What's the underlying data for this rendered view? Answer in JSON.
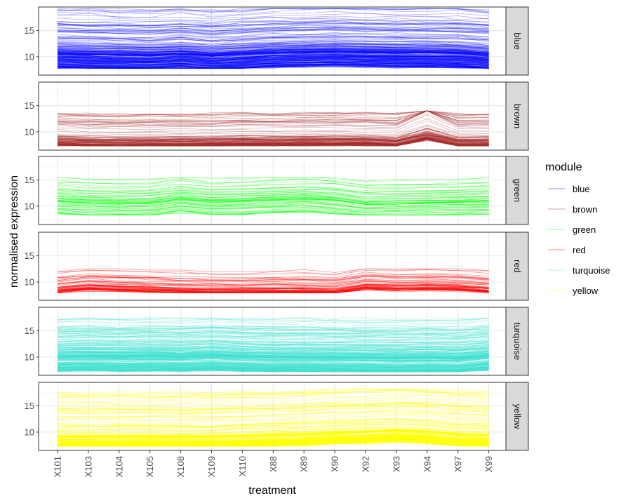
{
  "chart_data": {
    "type": "line",
    "title": "",
    "xlabel": "treatment",
    "ylabel": "normalised expression",
    "categories": [
      "X101",
      "X103",
      "X104",
      "X105",
      "X108",
      "X109",
      "X110",
      "X88",
      "X89",
      "X90",
      "X92",
      "X93",
      "X94",
      "X97",
      "X99"
    ],
    "ylim": [
      6.5,
      19.5
    ],
    "yticks": [
      10,
      15
    ],
    "grid": true,
    "legend": {
      "title": "module",
      "position": "right"
    },
    "facets": [
      {
        "name": "blue",
        "color": "#0000ff",
        "center": [
          10.5,
          10.4,
          10.3,
          10.2,
          10.5,
          10.1,
          10.4,
          10.7,
          10.8,
          10.9,
          10.8,
          10.7,
          10.7,
          10.6,
          10.2
        ],
        "min": 7.8,
        "max": 19.2,
        "n": 260,
        "alpha": 0.3
      },
      {
        "name": "brown",
        "color": "#a52a2a",
        "center": [
          8.5,
          8.3,
          8.2,
          8.3,
          8.3,
          8.3,
          8.5,
          8.4,
          8.5,
          8.5,
          8.5,
          8.3,
          9.6,
          8.3,
          8.3
        ],
        "min": 7.3,
        "max": 14.0,
        "n": 120,
        "alpha": 0.35
      },
      {
        "name": "green",
        "color": "#00ff00",
        "center": [
          11.0,
          10.6,
          10.5,
          10.6,
          11.3,
          10.8,
          10.9,
          11.2,
          11.4,
          11.1,
          10.4,
          10.5,
          10.6,
          10.7,
          10.9
        ],
        "min": 8.3,
        "max": 15.5,
        "n": 70,
        "alpha": 0.35
      },
      {
        "name": "red",
        "color": "#ff0000",
        "center": [
          8.8,
          9.4,
          9.2,
          9.0,
          8.8,
          8.7,
          8.7,
          8.8,
          8.8,
          8.6,
          9.5,
          9.3,
          9.4,
          9.3,
          8.9
        ],
        "min": 7.9,
        "max": 12.5,
        "n": 60,
        "alpha": 0.4
      },
      {
        "name": "turquoise",
        "color": "#40e0d0",
        "center": [
          10.0,
          10.1,
          10.0,
          10.1,
          10.0,
          10.2,
          10.0,
          9.9,
          9.9,
          9.8,
          9.8,
          9.7,
          9.8,
          9.7,
          10.2
        ],
        "min": 7.2,
        "max": 17.5,
        "n": 320,
        "alpha": 0.3
      },
      {
        "name": "yellow",
        "color": "#ffff00",
        "center": [
          9.0,
          9.0,
          9.0,
          9.1,
          9.0,
          9.0,
          9.2,
          9.3,
          9.5,
          9.8,
          9.9,
          10.2,
          9.9,
          9.4,
          9.3
        ],
        "min": 7.3,
        "max": 18.2,
        "n": 200,
        "alpha": 0.35
      }
    ]
  },
  "legend_items": [
    {
      "label": "blue",
      "color": "#0000ff"
    },
    {
      "label": "brown",
      "color": "#a52a2a"
    },
    {
      "label": "green",
      "color": "#00ff00"
    },
    {
      "label": "red",
      "color": "#ff0000"
    },
    {
      "label": "turquoise",
      "color": "#40e0d0"
    },
    {
      "label": "yellow",
      "color": "#ffff00"
    }
  ]
}
